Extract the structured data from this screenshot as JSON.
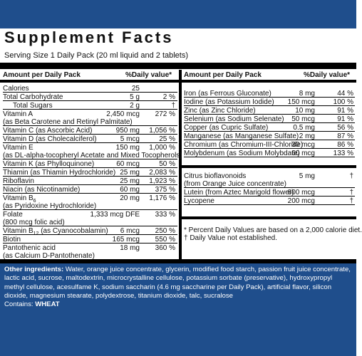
{
  "title": "Supplement Facts",
  "serving": "Serving Size 1 Daily Pack  (20 ml liquid and 2 tablets)",
  "left_header": {
    "amount": "Amount per Daily Pack",
    "dv": "%Daily value*"
  },
  "right_header": {
    "amount": "Amount per Daily Pack",
    "dv": "%Daily value*"
  },
  "left_rows": [
    {
      "name": "Calories",
      "amt": "25",
      "dv": ""
    },
    {
      "name": "Total Carbohydrate",
      "amt": "5 g",
      "dv": "2 %"
    },
    {
      "name": "Total Sugars",
      "amt": "2 g",
      "dv": "†"
    },
    {
      "name": "Vitamin A",
      "amt": "2,450 mcg",
      "dv": "272 %",
      "sub": "(as Beta Carotene and Retinyl Palmitate)"
    },
    {
      "name": "Vitamin C (as Ascorbic Acid)",
      "amt": "950 mg",
      "dv": "1,056 %"
    },
    {
      "name": "Vitamin D (as Cholecalciferol)",
      "amt": "5 mcg",
      "dv": "25 %"
    },
    {
      "name": "Vitamin E",
      "amt": "150 mg",
      "dv": "1,000 %",
      "sub": "(as DL-alpha-tocopheryl Acetate and Mixed Tocopherols)"
    },
    {
      "name": "Vitamin K (as Phylloquinone)",
      "amt": "60 mcg",
      "dv": "50 %"
    },
    {
      "name": "Thiamin (as Thiamin Hydrochloride)",
      "amt": "25 mg",
      "dv": "2,083 %"
    },
    {
      "name": "Riboflavin",
      "amt": "25 mg",
      "dv": "1,923 %"
    },
    {
      "name": "Niacin (as Nicotinamide)",
      "amt": "60 mg",
      "dv": "375 %"
    },
    {
      "name": "Vitamin B",
      "amt": "20 mg",
      "dv": "1,176 %",
      "subscript": "6",
      "sub": "(as Pyridoxine Hydrochloride)"
    },
    {
      "name": "Folate",
      "amt": "1,333 mcg DFE",
      "dv": "333 %",
      "sub": "(800 mcg folic acid)"
    },
    {
      "name": "Vitamin B",
      "amt": "6 mcg",
      "dv": "250 %",
      "subscript": "12",
      "after": " (as Cyanocobalamin)"
    },
    {
      "name": "Biotin",
      "amt": "165 mcg",
      "dv": "550 %"
    },
    {
      "name": "Pantothenic acid",
      "amt": "18 mg",
      "dv": "360 %",
      "sub": "(as Calcium D-Pantothenate)"
    }
  ],
  "right_rows": [
    {
      "name": "Iron (as Ferrous Gluconate)",
      "amt": "8 mg",
      "dv": "44 %"
    },
    {
      "name": "Iodine (as Potassium Iodide)",
      "amt": "150 mcg",
      "dv": "100 %"
    },
    {
      "name": "Zinc (as Zinc Chloride)",
      "amt": "10 mg",
      "dv": "91 %"
    },
    {
      "name": "Selenium (as Sodium Selenate)",
      "amt": "50 mcg",
      "dv": "91 %"
    },
    {
      "name": "Copper (as Cupric Sulfate)",
      "amt": "0.5 mg",
      "dv": "56 %"
    },
    {
      "name": "Manganese (as Manganese Sulfate)",
      "amt": "2 mg",
      "dv": "87 %"
    },
    {
      "name": "Chromium (as Chromium-III-Chloride)",
      "amt": "30 mcg",
      "dv": "86 %"
    },
    {
      "name": "Molybdenum (as Sodium Molybdate)",
      "amt": "60 mcg",
      "dv": "133 %"
    }
  ],
  "right_extra": [
    {
      "name": "Citrus bioflavonoids",
      "amt": "5 mg",
      "dv": "†",
      "sub": "(from Orange Juice concentrate)"
    },
    {
      "name": "Lutein (from Aztec Marigold flower)",
      "amt": "800 mcg",
      "dv": "†"
    },
    {
      "name": "Lycopene",
      "amt": "200 mcg",
      "dv": "†"
    }
  ],
  "footnotes": [
    "*  Percent Daily Values are based on a 2,000 calorie diet.",
    "†  Daily Value not established."
  ],
  "other_label": "Other ingredients:",
  "other_text": " Water, orange juice concentrate, glycerin, modified food starch, passion fruit juice concentrate, lactic acid, sucrose, maltodextrin, microcrystalline cellulose, potassium sorbate (preservative), hydroxypropyl methyl cellulose, acesulfame K, sodium saccharin (4.6 mg saccharine per Daily Pack), artificial flavor, silicon dioxide, magnesium stearate, polydextrose, titanium dioxide, talc, sucralose",
  "contains_label": "Contains: ",
  "contains_value": "WHEAT",
  "colors": {
    "blue": "#1f4e8c"
  }
}
